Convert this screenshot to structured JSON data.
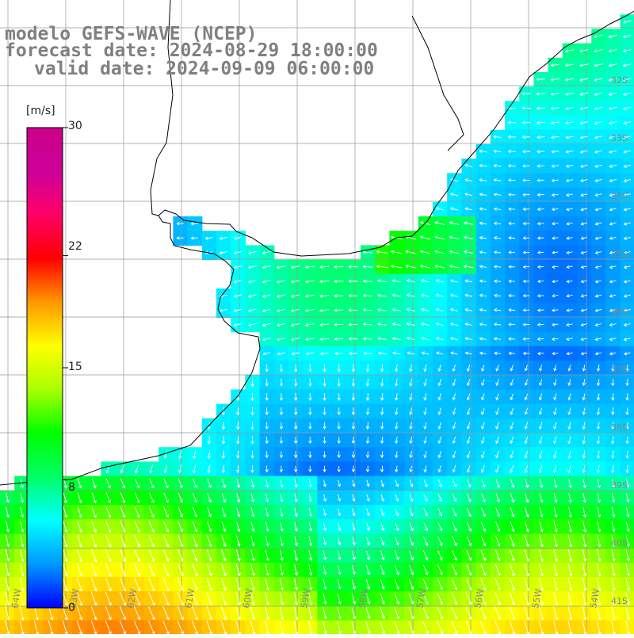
{
  "title": {
    "model": "modelo GEFS-WAVE (NCEP)",
    "forecast": "forecast date: 2024-08-29 18:00:00",
    "valid": "valid date: 2024-09-09 06:00:00"
  },
  "colorbar": {
    "unit": "[m/s]",
    "ticks": [
      "30",
      "22",
      "15",
      "8",
      "0"
    ],
    "tick_values": [
      30,
      22,
      15,
      8,
      0
    ],
    "range": [
      0,
      30
    ],
    "colormap": [
      "#0000ff",
      "#0099ff",
      "#00ffff",
      "#00ff66",
      "#00ff00",
      "#aaff00",
      "#ffff00",
      "#ff9900",
      "#ff0000",
      "#ff0066",
      "#cc0099",
      "#cc0088"
    ]
  },
  "map": {
    "background": "#ffffff",
    "grid_color": "#999999",
    "coast_color": "#000000",
    "vector_color": "#ffffff",
    "lat_labels": [
      "32S",
      "33S",
      "34S",
      "35S",
      "36S",
      "37S",
      "38S",
      "39S",
      "40S",
      "41S"
    ],
    "lon_labels": [
      "64W",
      "63W",
      "62W",
      "61W",
      "60W",
      "59W",
      "58W",
      "57W",
      "56W",
      "55W",
      "54W"
    ]
  }
}
